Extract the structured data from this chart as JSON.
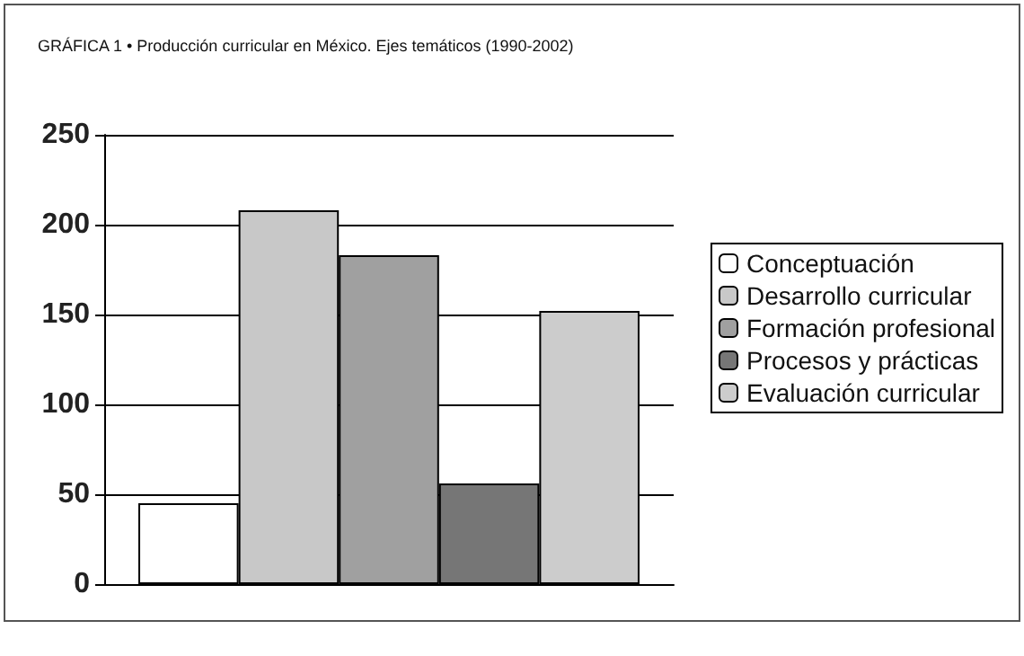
{
  "chart_data": {
    "type": "bar",
    "title": "GRÁFICA 1 • Producción curricular en México. Ejes temáticos (1990-2002)",
    "categories": [
      null
    ],
    "series": [
      {
        "name": "Conceptuación",
        "color": "#ffffff",
        "values": [
          45
        ]
      },
      {
        "name": "Desarrollo curricular",
        "color": "#c8c8c8",
        "values": [
          208
        ]
      },
      {
        "name": "Formación profesional",
        "color": "#a0a0a0",
        "values": [
          183
        ]
      },
      {
        "name": "Procesos y prácticas",
        "color": "#767676",
        "values": [
          56
        ]
      },
      {
        "name": "Evaluación curricular",
        "color": "#cccccc",
        "values": [
          152
        ]
      }
    ],
    "ylim": [
      0,
      250
    ],
    "yticks": [
      0,
      50,
      100,
      150,
      200,
      250
    ],
    "grid": "y",
    "legend": "right"
  }
}
